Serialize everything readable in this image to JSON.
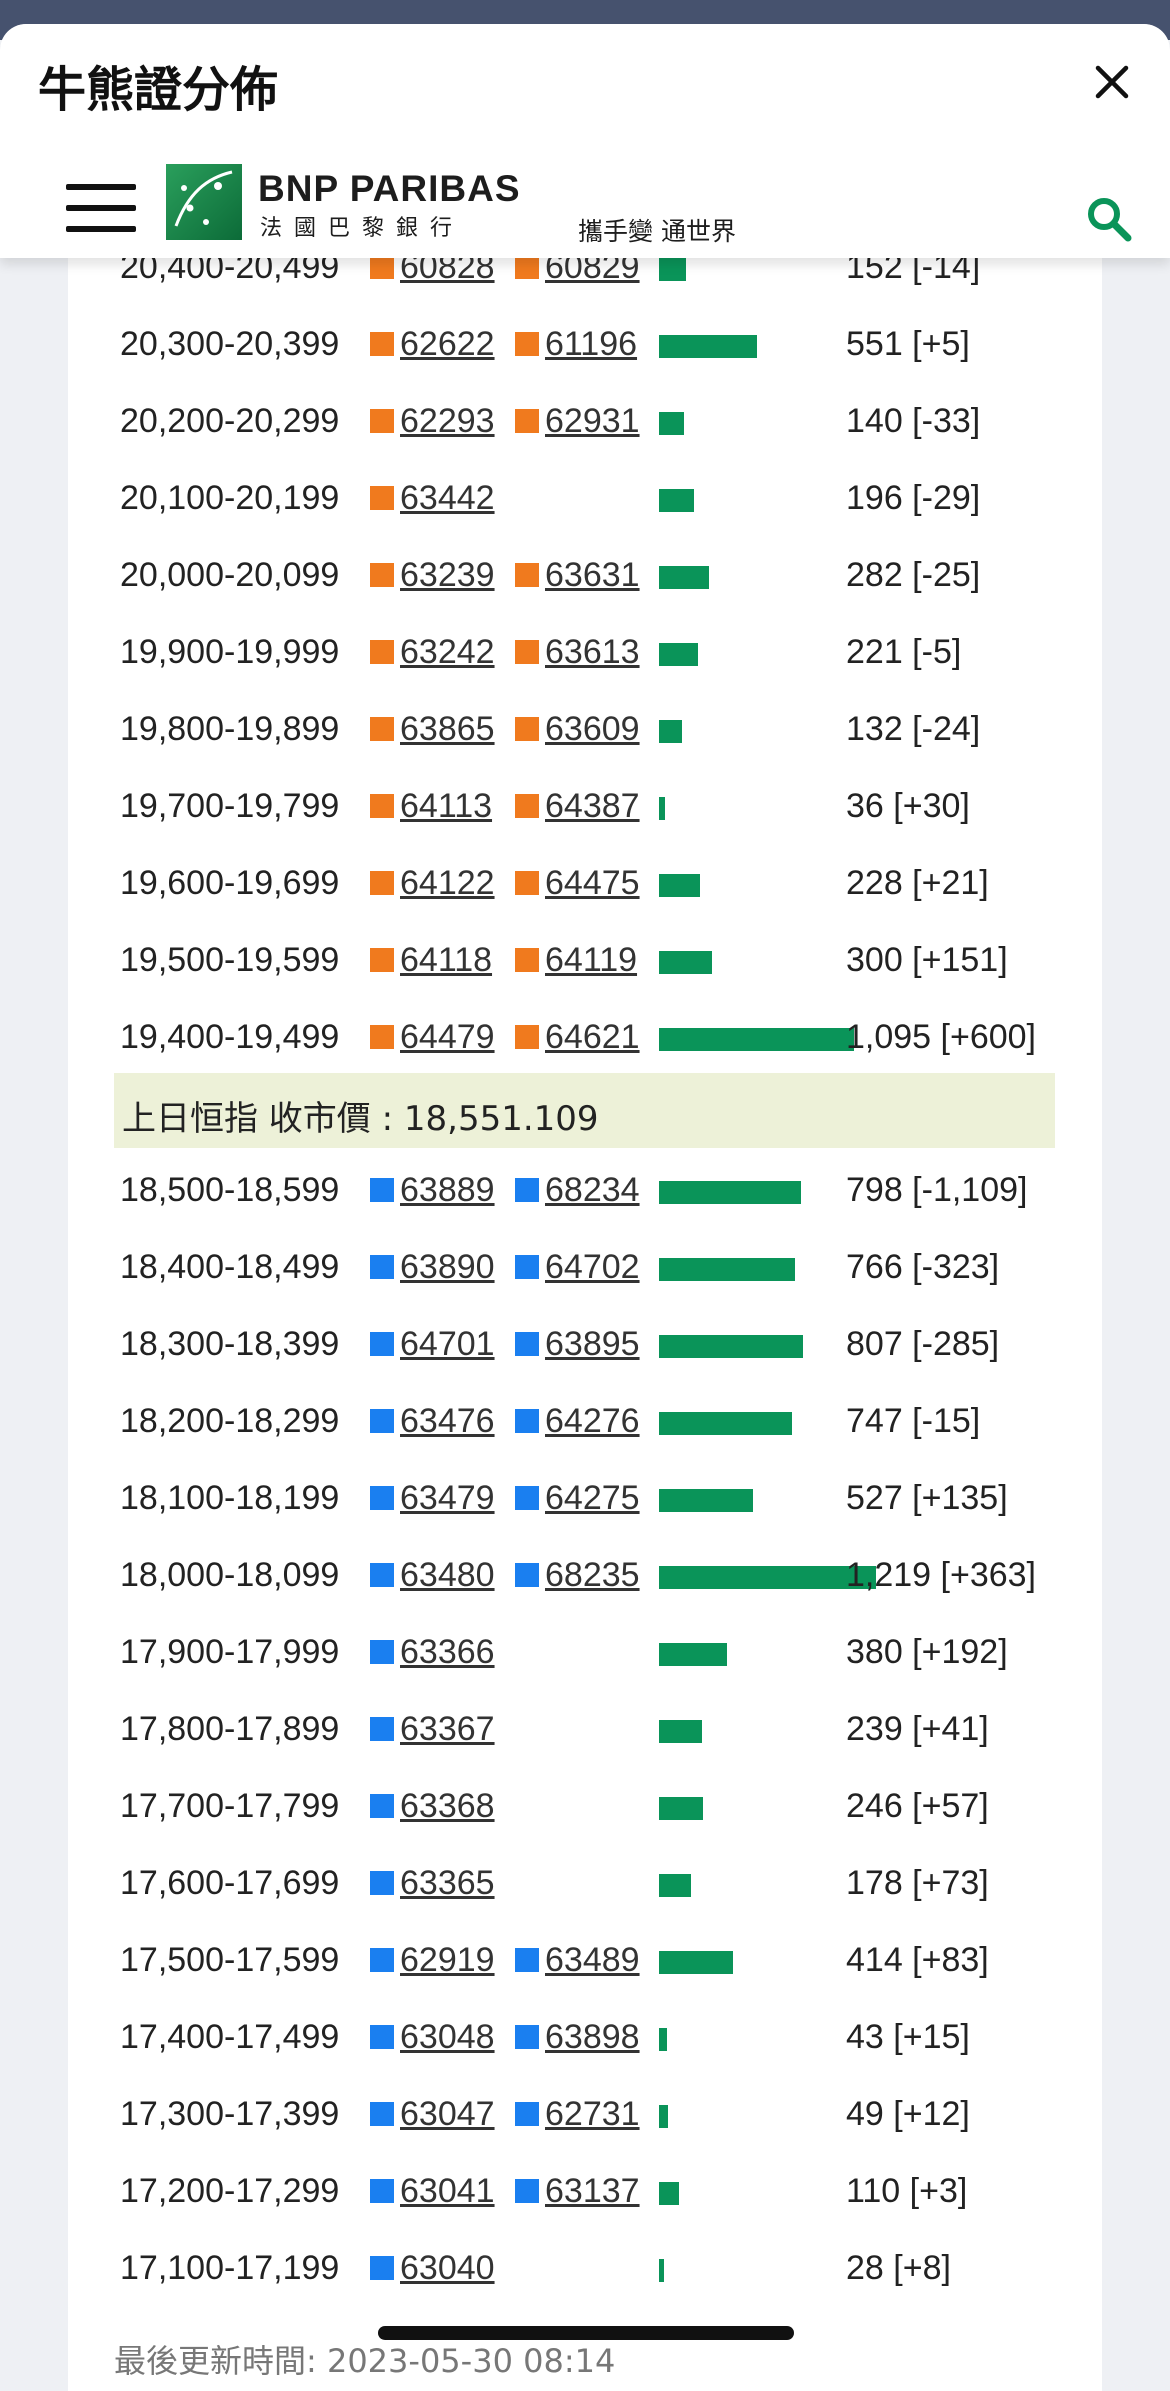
{
  "sheet": {
    "title": "牛熊證分佈"
  },
  "header": {
    "logo_name": "BNP PARIBAS",
    "logo_sub": "法國巴黎銀行",
    "slogan": "攜手變 通世界"
  },
  "colors": {
    "bull": "#f07a1e",
    "bear": "#1a7ff0",
    "bar": "#0a9459"
  },
  "bar_scale_max": 1219,
  "rows_above": [
    {
      "range": "20,400-20,499",
      "codes": [
        "60828",
        "60829"
      ],
      "volume": 152,
      "count": "152 [-14]"
    },
    {
      "range": "20,300-20,399",
      "codes": [
        "62622",
        "61196"
      ],
      "volume": 551,
      "count": "551 [+5]"
    },
    {
      "range": "20,200-20,299",
      "codes": [
        "62293",
        "62931"
      ],
      "volume": 140,
      "count": "140 [-33]"
    },
    {
      "range": "20,100-20,199",
      "codes": [
        "63442"
      ],
      "volume": 196,
      "count": "196 [-29]"
    },
    {
      "range": "20,000-20,099",
      "codes": [
        "63239",
        "63631"
      ],
      "volume": 282,
      "count": "282 [-25]"
    },
    {
      "range": "19,900-19,999",
      "codes": [
        "63242",
        "63613"
      ],
      "volume": 221,
      "count": "221 [-5]"
    },
    {
      "range": "19,800-19,899",
      "codes": [
        "63865",
        "63609"
      ],
      "volume": 132,
      "count": "132 [-24]"
    },
    {
      "range": "19,700-19,799",
      "codes": [
        "64113",
        "64387"
      ],
      "volume": 36,
      "count": "36 [+30]"
    },
    {
      "range": "19,600-19,699",
      "codes": [
        "64122",
        "64475"
      ],
      "volume": 228,
      "count": "228 [+21]"
    },
    {
      "range": "19,500-19,599",
      "codes": [
        "64118",
        "64119"
      ],
      "volume": 300,
      "count": "300 [+151]"
    },
    {
      "range": "19,400-19,499",
      "codes": [
        "64479",
        "64621"
      ],
      "volume": 1095,
      "count": "1,095 [+600]"
    }
  ],
  "divider_text": "上日恒指 收市價 : 18,551.109",
  "rows_below": [
    {
      "range": "18,500-18,599",
      "codes": [
        "63889",
        "68234"
      ],
      "volume": 798,
      "count": "798 [-1,109]"
    },
    {
      "range": "18,400-18,499",
      "codes": [
        "63890",
        "64702"
      ],
      "volume": 766,
      "count": "766 [-323]"
    },
    {
      "range": "18,300-18,399",
      "codes": [
        "64701",
        "63895"
      ],
      "volume": 807,
      "count": "807 [-285]"
    },
    {
      "range": "18,200-18,299",
      "codes": [
        "63476",
        "64276"
      ],
      "volume": 747,
      "count": "747 [-15]"
    },
    {
      "range": "18,100-18,199",
      "codes": [
        "63479",
        "64275"
      ],
      "volume": 527,
      "count": "527 [+135]"
    },
    {
      "range": "18,000-18,099",
      "codes": [
        "63480",
        "68235"
      ],
      "volume": 1219,
      "count": "1,219 [+363]"
    },
    {
      "range": "17,900-17,999",
      "codes": [
        "63366"
      ],
      "volume": 380,
      "count": "380 [+192]"
    },
    {
      "range": "17,800-17,899",
      "codes": [
        "63367"
      ],
      "volume": 239,
      "count": "239 [+41]"
    },
    {
      "range": "17,700-17,799",
      "codes": [
        "63368"
      ],
      "volume": 246,
      "count": "246 [+57]"
    },
    {
      "range": "17,600-17,699",
      "codes": [
        "63365"
      ],
      "volume": 178,
      "count": "178 [+73]"
    },
    {
      "range": "17,500-17,599",
      "codes": [
        "62919",
        "63489"
      ],
      "volume": 414,
      "count": "414 [+83]"
    },
    {
      "range": "17,400-17,499",
      "codes": [
        "63048",
        "63898"
      ],
      "volume": 43,
      "count": "43 [+15]"
    },
    {
      "range": "17,300-17,399",
      "codes": [
        "63047",
        "62731"
      ],
      "volume": 49,
      "count": "49 [+12]"
    },
    {
      "range": "17,200-17,299",
      "codes": [
        "63041",
        "63137"
      ],
      "volume": 110,
      "count": "110 [+3]"
    },
    {
      "range": "17,100-17,199",
      "codes": [
        "63040"
      ],
      "volume": 28,
      "count": "28 [+8]"
    }
  ],
  "footer": {
    "last_updated": "最後更新時間: 2023-05-30 08:14"
  }
}
